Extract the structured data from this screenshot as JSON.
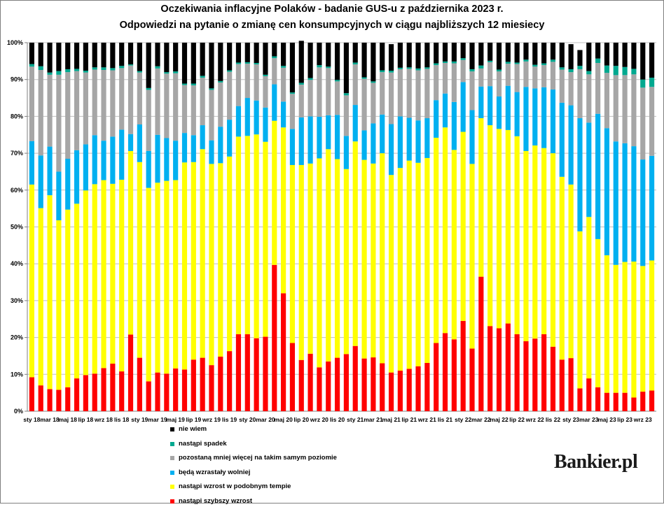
{
  "title_line1": "Oczekiwania inflacyjne Polaków - badanie GUS-u z października 2023 r.",
  "title_line2": "Odpowiedzi na pytanie o zmianę cen konsumpcyjnych w ciągu najbliższych 12 miesiecy",
  "logo": "Bankier.pl",
  "chart_data": {
    "type": "bar",
    "stacked": true,
    "ylim": [
      0,
      100
    ],
    "y_ticks": [
      "0%",
      "10%",
      "20%",
      "30%",
      "40%",
      "50%",
      "60%",
      "70%",
      "80%",
      "90%",
      "100%"
    ],
    "grid": true,
    "legend_position": "bottom",
    "x_tick_labels": [
      "sty 18",
      "mar 18",
      "maj 18",
      "lip 18",
      "wrz 18",
      "lis 18",
      "sty 19",
      "mar 19",
      "maj 19",
      "lip 19",
      "wrz 19",
      "lis 19",
      "sty 20",
      "mar 20",
      "maj 20",
      "lip 20",
      "wrz 20",
      "lis 20",
      "sty 21",
      "mar 21",
      "maj 21",
      "lip 21",
      "wrz 21",
      "lis 21",
      "sty 22",
      "mar 22",
      "maj 22",
      "lip 22",
      "wrz 22",
      "lis 22",
      "sty 23",
      "mar 23",
      "maj 23",
      "lip 23",
      "wrz 23"
    ],
    "series": [
      {
        "name": "nastąpi szybszy wzrost",
        "color": "#ff0000",
        "values": [
          9.2,
          7.0,
          6.0,
          5.8,
          6.5,
          8.9,
          9.8,
          10.2,
          11.7,
          12.9,
          10.8,
          20.8,
          14.5,
          8.1,
          10.5,
          10.2,
          11.6,
          11.3,
          14.0,
          14.5,
          12.5,
          14.8,
          16.3,
          20.9,
          20.9,
          19.8,
          20.2,
          39.7,
          32.0,
          18.5,
          13.9,
          15.6,
          11.9,
          13.5,
          14.5,
          15.5,
          17.7,
          14.3,
          14.6,
          13.0,
          10.5,
          11.0,
          11.5,
          12.2,
          13.1,
          18.5,
          21.2,
          19.5,
          24.5,
          17.0,
          36.5,
          23.1,
          22.5,
          23.8,
          20.9,
          19.0,
          19.7,
          20.9,
          17.5,
          14.0,
          14.4,
          6.2,
          8.9,
          6.5,
          5.0,
          5.0,
          5.0,
          3.7,
          5.3,
          5.6
        ]
      },
      {
        "name": "nastąpi wzrost w podobnym tempie",
        "color": "#ffff00",
        "values": [
          52.3,
          48.1,
          52.6,
          46.0,
          48.2,
          47.4,
          50.1,
          51.4,
          51.0,
          48.8,
          52.0,
          49.8,
          53.1,
          52.5,
          51.5,
          52.3,
          51.1,
          56.2,
          53.6,
          56.6,
          54.6,
          52.5,
          52.8,
          53.6,
          53.8,
          55.3,
          52.9,
          39.1,
          45.0,
          48.3,
          52.9,
          51.6,
          56.7,
          57.6,
          53.9,
          50.2,
          55.5,
          53.9,
          52.6,
          57.0,
          53.6,
          55.0,
          56.5,
          55.2,
          55.6,
          55.7,
          55.8,
          51.4,
          51.3,
          50.1,
          43.0,
          54.5,
          54.1,
          52.5,
          53.7,
          51.6,
          52.4,
          50.5,
          52.5,
          49.6,
          47.1,
          42.6,
          43.8,
          40.2,
          37.3,
          34.7,
          35.5,
          36.9,
          34.1,
          35.3
        ]
      },
      {
        "name": "będą wzrastały wolniej",
        "color": "#00b0f0",
        "values": [
          11.8,
          14.3,
          13.2,
          13.2,
          13.8,
          14.5,
          12.5,
          13.3,
          10.7,
          12.8,
          13.6,
          4.6,
          10.2,
          10.0,
          13.0,
          11.6,
          10.7,
          8.0,
          7.3,
          6.5,
          6.4,
          9.9,
          10.0,
          8.3,
          10.3,
          9.2,
          9.3,
          9.9,
          7.0,
          9.8,
          12.9,
          12.8,
          11.3,
          9.2,
          12.0,
          9.0,
          9.9,
          8.0,
          10.9,
          10.5,
          13.8,
          14.0,
          11.6,
          11.5,
          10.8,
          10.2,
          9.2,
          13.0,
          13.5,
          14.6,
          8.6,
          10.6,
          8.8,
          12.0,
          12.0,
          17.4,
          15.5,
          16.5,
          17.3,
          20.1,
          21.5,
          30.7,
          25.6,
          34.0,
          34.5,
          33.5,
          32.2,
          31.3,
          28.9,
          28.4
        ]
      },
      {
        "name": "pozostaną mniej więcej na takim samym poziomie",
        "color": "#a6a6a6",
        "values": [
          20.2,
          23.2,
          19.5,
          26.3,
          23.5,
          21.5,
          19.5,
          17.8,
          19.2,
          18.0,
          16.7,
          18.6,
          14.1,
          16.6,
          18.0,
          17.5,
          18.3,
          13.0,
          13.5,
          12.9,
          13.7,
          12.0,
          13.0,
          11.4,
          9.3,
          9.8,
          8.5,
          7.1,
          9.2,
          9.5,
          8.9,
          9.9,
          13.4,
          12.8,
          9.1,
          11.0,
          11.0,
          14.0,
          11.0,
          11.5,
          14.0,
          12.8,
          13.3,
          13.6,
          13.4,
          9.5,
          8.3,
          10.5,
          6.0,
          10.5,
          4.9,
          6.5,
          6.8,
          6.0,
          7.6,
          6.9,
          5.9,
          6.0,
          7.5,
          9.0,
          9.0,
          13.3,
          13.1,
          13.8,
          15.0,
          18.0,
          18.5,
          19.5,
          19.5,
          18.7
        ]
      },
      {
        "name": "nastąpi spadek",
        "color": "#00a88f",
        "values": [
          0.7,
          1.0,
          0.6,
          1.0,
          0.8,
          0.6,
          0.5,
          0.6,
          0.7,
          0.6,
          0.6,
          0.3,
          0.4,
          0.5,
          0.6,
          0.4,
          0.5,
          0.4,
          0.5,
          0.5,
          0.4,
          0.4,
          0.4,
          0.4,
          0.4,
          0.4,
          0.4,
          0.5,
          0.5,
          0.4,
          0.5,
          0.5,
          0.6,
          0.4,
          0.4,
          0.6,
          0.5,
          0.4,
          0.4,
          0.5,
          0.5,
          0.4,
          0.4,
          0.5,
          0.4,
          0.5,
          0.4,
          0.5,
          0.5,
          0.6,
          0.8,
          0.4,
          0.5,
          0.5,
          0.4,
          0.5,
          0.5,
          0.5,
          0.6,
          0.6,
          0.8,
          0.9,
          0.9,
          1.2,
          2.0,
          2.5,
          2.2,
          1.5,
          2.2,
          2.5
        ]
      },
      {
        "name": "nie wiem",
        "color": "#000000",
        "values": [
          5.8,
          6.4,
          8.1,
          7.7,
          7.2,
          7.1,
          7.6,
          6.7,
          6.7,
          6.9,
          6.3,
          5.9,
          7.7,
          12.3,
          6.4,
          8.0,
          7.8,
          11.1,
          11.1,
          9.0,
          12.4,
          10.4,
          7.5,
          5.4,
          5.3,
          5.5,
          8.7,
          3.7,
          6.3,
          13.5,
          11.4,
          9.6,
          6.1,
          6.5,
          10.1,
          13.7,
          5.4,
          9.4,
          10.5,
          7.5,
          7.2,
          6.8,
          6.7,
          7.0,
          6.7,
          5.6,
          5.1,
          5.1,
          4.2,
          7.2,
          6.2,
          4.9,
          7.3,
          5.2,
          5.4,
          4.6,
          6.0,
          5.6,
          4.6,
          6.7,
          6.8,
          4.3,
          7.7,
          4.3,
          6.2,
          6.3,
          6.6,
          7.1,
          10.0,
          9.5
        ]
      }
    ]
  }
}
